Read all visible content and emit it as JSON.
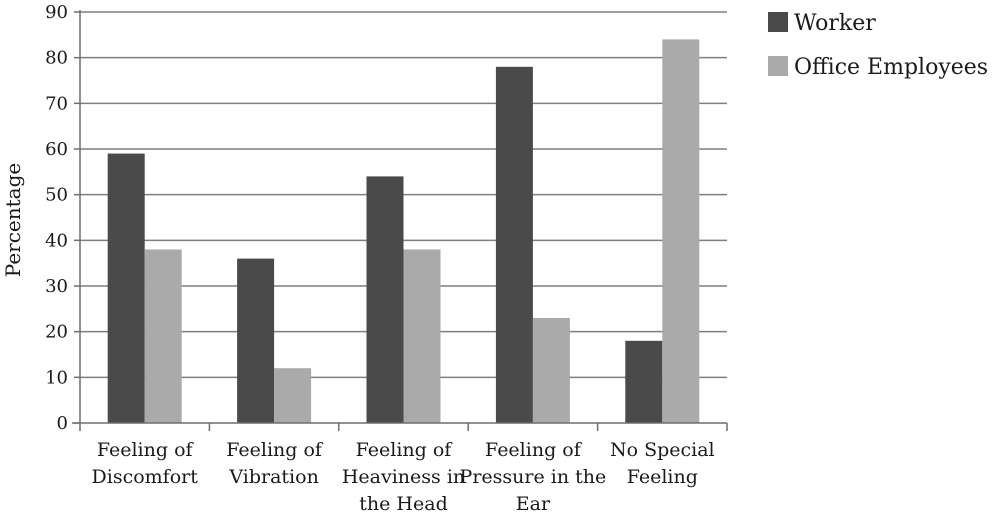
{
  "chart_data": {
    "type": "bar",
    "categories": [
      [
        "Feeling of",
        "Discomfort"
      ],
      [
        "Feeling of",
        "Vibration"
      ],
      [
        "Feeling of",
        "Heaviness in",
        "the Head"
      ],
      [
        "Feeling of",
        "Pressure in the",
        "Ear"
      ],
      [
        "No Special",
        "Feeling"
      ]
    ],
    "series": [
      {
        "name": "Worker",
        "values": [
          59,
          36,
          54,
          78,
          18
        ]
      },
      {
        "name": "Office Employees",
        "values": [
          38,
          12,
          38,
          23,
          84
        ]
      }
    ],
    "title": "",
    "xlabel": "",
    "ylabel": "Percentage",
    "ylim": [
      0,
      90
    ],
    "yticks": [
      0,
      10,
      20,
      30,
      40,
      50,
      60,
      70,
      80,
      90
    ],
    "grid": true,
    "legend_placement": "right",
    "colors": {
      "Worker": "#4a4a4a",
      "Office Employees": "#aaaaaa",
      "grid": "#7f7f7f",
      "axis": "#6e6e6e"
    }
  }
}
